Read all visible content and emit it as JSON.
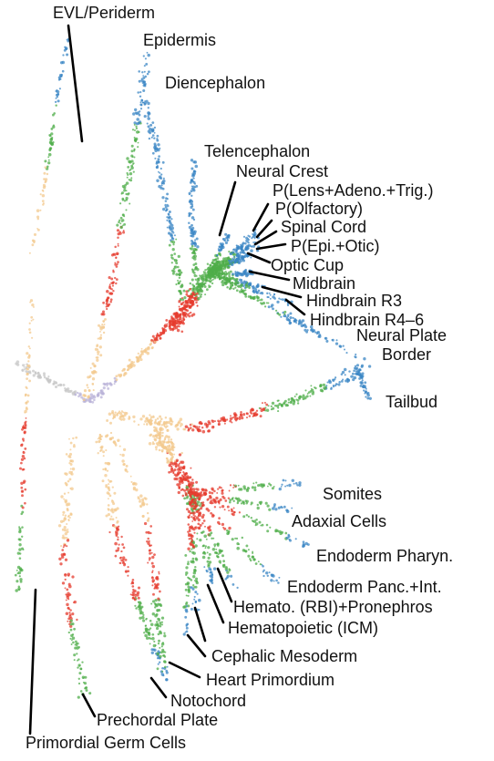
{
  "colors": {
    "early": "#b9b3d8",
    "blastula": "#c7c7c7",
    "gastrula": "#f3c98f",
    "mid": "#e63b2e",
    "late": "#4fae4a",
    "terminal": "#3a86c4",
    "leader": "#000000"
  },
  "labels": {
    "evl": "EVL/Periderm",
    "epidermis": "Epidermis",
    "diencephalon": "Diencephalon",
    "telencephalon": "Telencephalon",
    "neural_crest": "Neural Crest",
    "p_lens": "P(Lens+Adeno.+Trig.)",
    "p_olfactory": "P(Olfactory)",
    "spinal_cord": "Spinal Cord",
    "p_epi_otic": "P(Epi.+Otic)",
    "optic_cup": "Optic Cup",
    "midbrain": "Midbrain",
    "hindbrain_r3": "Hindbrain R3",
    "hindbrain_r46": "Hindbrain R4–6",
    "neural_plate_border_1": "Neural Plate",
    "neural_plate_border_2": "Border",
    "tailbud": "Tailbud",
    "somites": "Somites",
    "adaxial": "Adaxial Cells",
    "endoderm_pharyn": "Endoderm Pharyn.",
    "endoderm_panc": "Endoderm Panc.+Int.",
    "hemato_rbi": "Hemato. (RBI)+Pronephros",
    "hematopoietic_icm": "Hematopoietic (ICM)",
    "cephalic_mesoderm": "Cephalic Mesoderm",
    "heart_primordium": "Heart Primordium",
    "notochord": "Notochord",
    "prechordal_plate": "Prechordal Plate",
    "primordial_germ_cells": "Primordial Germ Cells"
  }
}
